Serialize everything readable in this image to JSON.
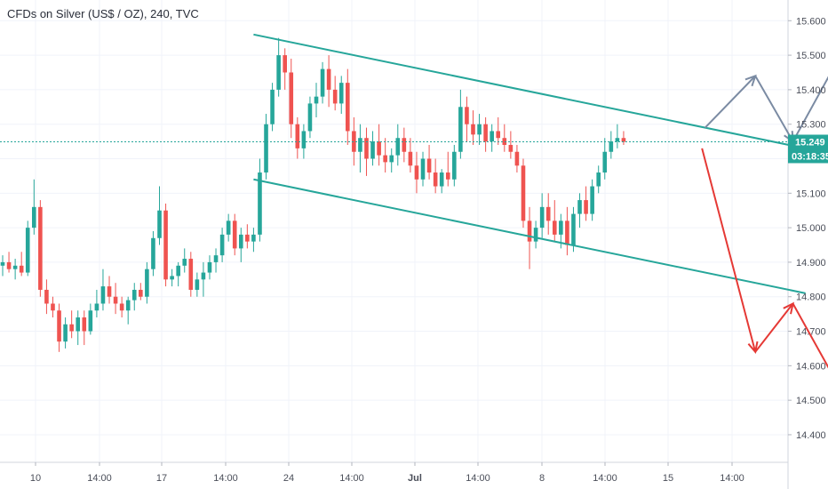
{
  "header": {
    "symbol_title": "CFDs on Silver (US$ / OZ), 240, TVC"
  },
  "colors": {
    "bull": "#26a69a",
    "bear": "#ef5350",
    "channel": "#26a69a",
    "bullish_arrows": "#7b8ba3",
    "bearish_arrows": "#e53935",
    "price_line": "#26a69a",
    "grid": "#f0f3fa"
  },
  "chart_data": {
    "type": "candlestick",
    "y_axis": {
      "ylim": [
        14.32,
        15.66
      ],
      "ticks": [
        "15.600",
        "15.500",
        "15.400",
        "15.300",
        "15.200",
        "15.100",
        "15.000",
        "14.900",
        "14.800",
        "14.700",
        "14.600",
        "14.500",
        "14.400"
      ]
    },
    "x_axis": {
      "ticks": [
        "10",
        "14:00",
        "17",
        "14:00",
        "24",
        "14:00",
        "Jul",
        "14:00",
        "8",
        "14:00",
        "15",
        "14:00"
      ],
      "bold_ticks": [
        "Jul"
      ]
    },
    "last_price": {
      "value": 15.249,
      "label": "15.249",
      "countdown": "03:18:35"
    },
    "candle_count": 100,
    "candles": [
      [
        14.89,
        14.92,
        14.86,
        14.9
      ],
      [
        14.9,
        14.93,
        14.87,
        14.88
      ],
      [
        14.88,
        14.91,
        14.85,
        14.89
      ],
      [
        14.89,
        14.93,
        14.86,
        14.87
      ],
      [
        14.87,
        15.02,
        14.86,
        15.0
      ],
      [
        15.0,
        15.14,
        14.98,
        15.06
      ],
      [
        15.06,
        15.08,
        14.8,
        14.82
      ],
      [
        14.82,
        14.85,
        14.75,
        14.78
      ],
      [
        14.78,
        14.8,
        14.74,
        14.76
      ],
      [
        14.76,
        14.78,
        14.64,
        14.67
      ],
      [
        14.67,
        14.74,
        14.65,
        14.72
      ],
      [
        14.72,
        14.76,
        14.68,
        14.7
      ],
      [
        14.7,
        14.76,
        14.66,
        14.74
      ],
      [
        14.74,
        14.76,
        14.66,
        14.7
      ],
      [
        14.7,
        14.78,
        14.69,
        14.76
      ],
      [
        14.76,
        14.82,
        14.74,
        14.78
      ],
      [
        14.78,
        14.88,
        14.76,
        14.83
      ],
      [
        14.83,
        14.86,
        14.78,
        14.8
      ],
      [
        14.8,
        14.84,
        14.75,
        14.78
      ],
      [
        14.78,
        14.8,
        14.74,
        14.76
      ],
      [
        14.76,
        14.8,
        14.72,
        14.79
      ],
      [
        14.79,
        14.84,
        14.76,
        14.82
      ],
      [
        14.82,
        14.84,
        14.79,
        14.8
      ],
      [
        14.8,
        14.9,
        14.78,
        14.88
      ],
      [
        14.88,
        14.99,
        14.86,
        14.97
      ],
      [
        14.97,
        15.12,
        14.95,
        15.05
      ],
      [
        15.05,
        15.07,
        14.83,
        14.85
      ],
      [
        14.85,
        14.88,
        14.83,
        14.86
      ],
      [
        14.86,
        14.9,
        14.83,
        14.89
      ],
      [
        14.89,
        14.94,
        14.87,
        14.91
      ],
      [
        14.91,
        14.93,
        14.8,
        14.82
      ],
      [
        14.82,
        14.87,
        14.8,
        14.85
      ],
      [
        14.85,
        14.9,
        14.8,
        14.87
      ],
      [
        14.87,
        14.92,
        14.85,
        14.9
      ],
      [
        14.9,
        14.94,
        14.87,
        14.92
      ],
      [
        14.92,
        15.0,
        14.9,
        14.98
      ],
      [
        14.98,
        15.04,
        14.96,
        15.02
      ],
      [
        15.02,
        15.04,
        14.92,
        14.94
      ],
      [
        14.94,
        15.0,
        14.9,
        14.98
      ],
      [
        14.98,
        15.01,
        14.94,
        14.96
      ],
      [
        14.96,
        15.0,
        14.93,
        14.98
      ],
      [
        14.98,
        15.2,
        14.96,
        15.16
      ],
      [
        15.16,
        15.33,
        15.14,
        15.3
      ],
      [
        15.3,
        15.42,
        15.28,
        15.4
      ],
      [
        15.4,
        15.55,
        15.38,
        15.5
      ],
      [
        15.5,
        15.52,
        15.4,
        15.45
      ],
      [
        15.45,
        15.49,
        15.26,
        15.3
      ],
      [
        15.3,
        15.32,
        15.2,
        15.23
      ],
      [
        15.23,
        15.3,
        15.2,
        15.28
      ],
      [
        15.28,
        15.38,
        15.26,
        15.36
      ],
      [
        15.36,
        15.42,
        15.32,
        15.38
      ],
      [
        15.38,
        15.48,
        15.36,
        15.46
      ],
      [
        15.46,
        15.5,
        15.35,
        15.4
      ],
      [
        15.4,
        15.44,
        15.34,
        15.36
      ],
      [
        15.36,
        15.44,
        15.33,
        15.42
      ],
      [
        15.42,
        15.46,
        15.24,
        15.28
      ],
      [
        15.28,
        15.32,
        15.18,
        15.22
      ],
      [
        15.22,
        15.3,
        15.16,
        15.26
      ],
      [
        15.26,
        15.29,
        15.15,
        15.2
      ],
      [
        15.2,
        15.28,
        15.18,
        15.25
      ],
      [
        15.25,
        15.3,
        15.18,
        15.21
      ],
      [
        15.21,
        15.26,
        15.16,
        15.19
      ],
      [
        15.19,
        15.23,
        15.16,
        15.21
      ],
      [
        15.21,
        15.3,
        15.18,
        15.26
      ],
      [
        15.26,
        15.29,
        15.19,
        15.22
      ],
      [
        15.22,
        15.26,
        15.16,
        15.18
      ],
      [
        15.18,
        15.22,
        15.1,
        15.14
      ],
      [
        15.14,
        15.22,
        15.12,
        15.2
      ],
      [
        15.2,
        15.24,
        15.14,
        15.16
      ],
      [
        15.16,
        15.2,
        15.1,
        15.12
      ],
      [
        15.12,
        15.17,
        15.1,
        15.16
      ],
      [
        15.16,
        15.22,
        15.12,
        15.14
      ],
      [
        15.14,
        15.24,
        15.12,
        15.22
      ],
      [
        15.22,
        15.4,
        15.2,
        15.35
      ],
      [
        15.35,
        15.38,
        15.25,
        15.3
      ],
      [
        15.3,
        15.34,
        15.24,
        15.27
      ],
      [
        15.27,
        15.33,
        15.24,
        15.3
      ],
      [
        15.3,
        15.32,
        15.22,
        15.25
      ],
      [
        15.25,
        15.3,
        15.22,
        15.28
      ],
      [
        15.28,
        15.32,
        15.24,
        15.26
      ],
      [
        15.26,
        15.3,
        15.22,
        15.24
      ],
      [
        15.24,
        15.28,
        15.2,
        15.22
      ],
      [
        15.22,
        15.24,
        15.16,
        15.18
      ],
      [
        15.18,
        15.2,
        15.0,
        15.02
      ],
      [
        15.02,
        15.06,
        14.88,
        14.96
      ],
      [
        14.96,
        15.02,
        14.94,
        15.0
      ],
      [
        15.0,
        15.1,
        14.97,
        15.06
      ],
      [
        15.06,
        15.1,
        14.98,
        15.02
      ],
      [
        15.02,
        15.08,
        14.96,
        14.98
      ],
      [
        14.98,
        15.04,
        14.94,
        15.02
      ],
      [
        15.02,
        15.06,
        14.92,
        14.95
      ],
      [
        14.95,
        15.06,
        14.93,
        15.04
      ],
      [
        15.04,
        15.1,
        15.0,
        15.08
      ],
      [
        15.08,
        15.12,
        15.02,
        15.04
      ],
      [
        15.04,
        15.14,
        15.02,
        15.12
      ],
      [
        15.12,
        15.18,
        15.1,
        15.16
      ],
      [
        15.16,
        15.26,
        15.14,
        15.22
      ],
      [
        15.22,
        15.28,
        15.2,
        15.25
      ],
      [
        15.25,
        15.3,
        15.23,
        15.26
      ],
      [
        15.26,
        15.28,
        15.24,
        15.249
      ]
    ],
    "channel": {
      "upper": [
        {
          "x": 40.0,
          "y": 15.56
        },
        {
          "x": 128.0,
          "y": 15.23
        }
      ],
      "lower": [
        {
          "x": 40.0,
          "y": 15.14
        },
        {
          "x": 128.0,
          "y": 14.81
        }
      ]
    },
    "bullish_path": [
      {
        "x": 112.0,
        "y": 15.29
      },
      {
        "x": 120.0,
        "y": 15.44
      },
      {
        "x": 126.0,
        "y": 15.25
      },
      {
        "x": 136.0,
        "y": 15.58
      }
    ],
    "bearish_path": [
      {
        "x": 111.5,
        "y": 15.23
      },
      {
        "x": 120.0,
        "y": 14.64
      },
      {
        "x": 126.0,
        "y": 14.78
      },
      {
        "x": 137.0,
        "y": 14.42
      }
    ]
  }
}
